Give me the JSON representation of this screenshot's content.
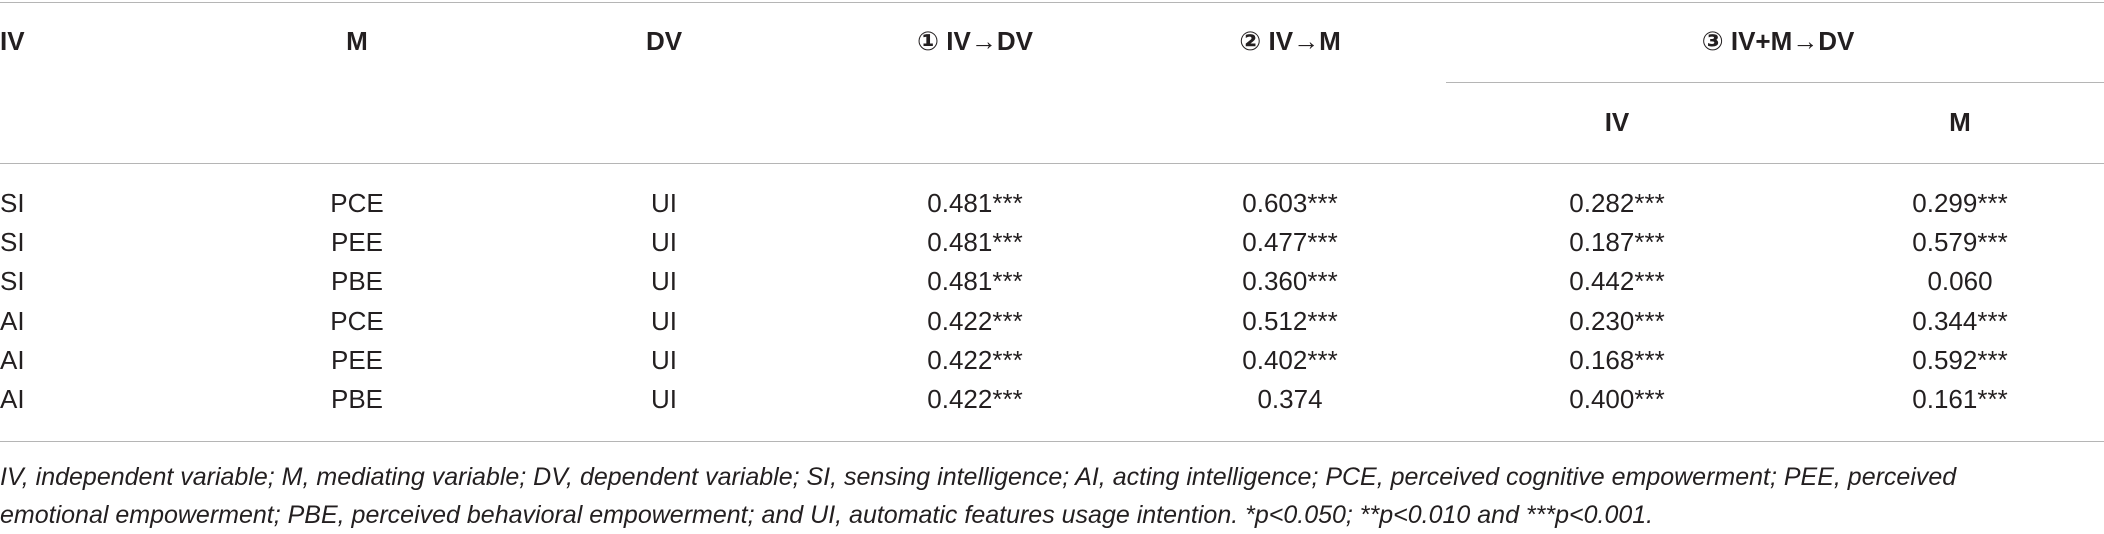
{
  "table": {
    "headers": {
      "iv": "IV",
      "m": "M",
      "dv": "DV",
      "step1": "① IV→DV",
      "step2": "② IV→M",
      "step3": "③ IV+M→DV",
      "step3_iv": "IV",
      "step3_m": "M"
    },
    "rows": [
      [
        "SI",
        "PCE",
        "UI",
        "0.481***",
        "0.603***",
        "0.282***",
        "0.299***"
      ],
      [
        "SI",
        "PEE",
        "UI",
        "0.481***",
        "0.477***",
        "0.187***",
        "0.579***"
      ],
      [
        "SI",
        "PBE",
        "UI",
        "0.481***",
        "0.360***",
        "0.442***",
        "0.060"
      ],
      [
        "AI",
        "PCE",
        "UI",
        "0.422***",
        "0.512***",
        "0.230***",
        "0.344***"
      ],
      [
        "AI",
        "PEE",
        "UI",
        "0.422***",
        "0.402***",
        "0.168***",
        "0.592***"
      ],
      [
        "AI",
        "PBE",
        "UI",
        "0.422***",
        "0.374",
        "0.400***",
        "0.161***"
      ]
    ],
    "footnote": "IV, independent variable; M, mediating variable; DV, dependent variable; SI, sensing intelligence; AI, acting intelligence; PCE, perceived cognitive empowerment; PEE, perceived emotional empowerment; PBE, perceived behavioral empowerment; and UI, automatic features usage intention. *p<0.050; **p<0.010 and ***p<0.001."
  }
}
